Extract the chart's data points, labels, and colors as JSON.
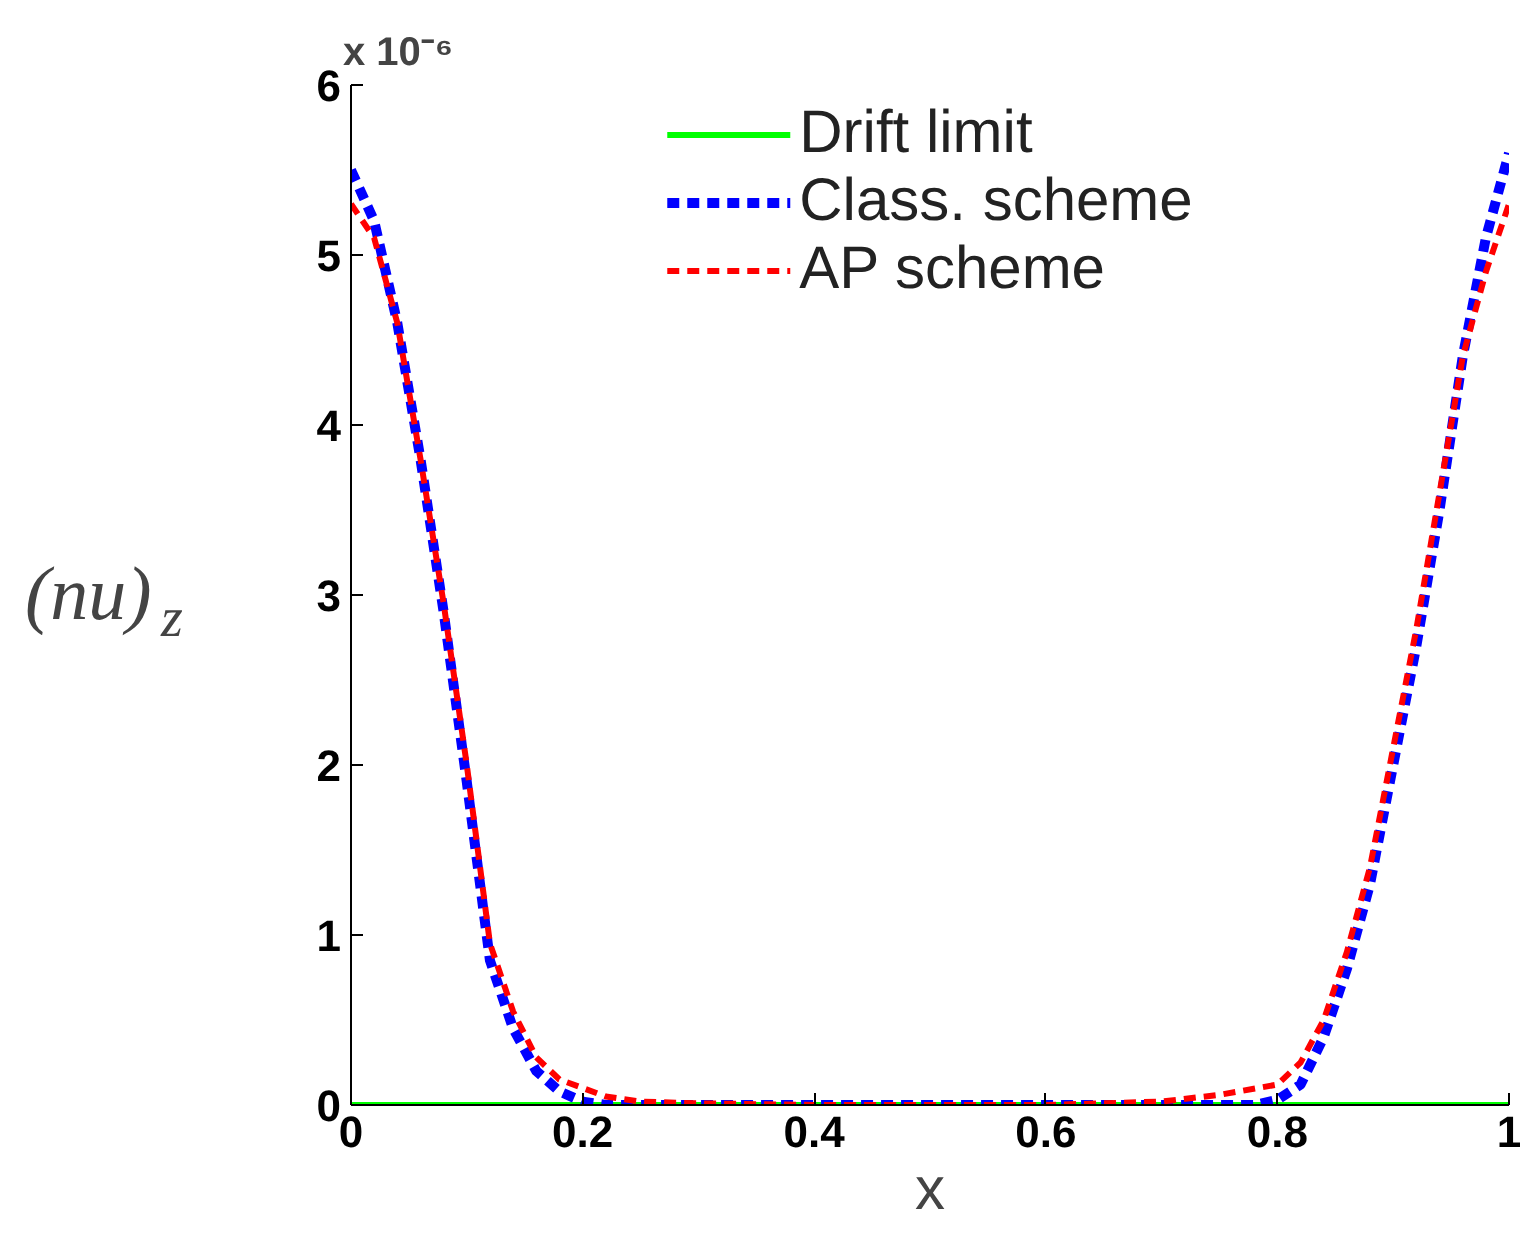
{
  "chart_data": {
    "type": "line",
    "xlabel": "x",
    "ylabel": "(nu)$_{z}$",
    "annotations": [
      "x 10⁻⁶"
    ],
    "xlim": [
      0,
      1
    ],
    "xticks": [
      0,
      0.2,
      0.4,
      0.6,
      0.8,
      1
    ],
    "ylim": [
      0,
      6
    ],
    "yticks": [
      0,
      1,
      2,
      3,
      4,
      5,
      6
    ],
    "grid": false,
    "legend": "top",
    "marker": "none",
    "series": [
      {
        "name": "Drift limit",
        "color": "#00ff00",
        "line_style": "solid",
        "x": [
          0,
          1
        ],
        "values": [
          0,
          0
        ]
      },
      {
        "name": "Class. scheme",
        "color": "#0000ff",
        "line_style": "dashed",
        "x": [
          0,
          0.02,
          0.04,
          0.06,
          0.08,
          0.1,
          0.12,
          0.14,
          0.16,
          0.18,
          0.2,
          0.22,
          0.3,
          0.4,
          0.5,
          0.6,
          0.7,
          0.78,
          0.8,
          0.82,
          0.84,
          0.86,
          0.88,
          0.9,
          0.92,
          0.94,
          0.96,
          0.98,
          1
        ],
        "values": [
          5.5,
          5.2,
          4.6,
          3.8,
          2.9,
          1.9,
          0.85,
          0.45,
          0.2,
          0.08,
          0.02,
          0,
          0,
          0,
          0,
          0,
          0,
          0,
          0.03,
          0.12,
          0.4,
          0.8,
          1.3,
          2.0,
          2.7,
          3.5,
          4.4,
          5.1,
          5.6
        ]
      },
      {
        "name": "AP scheme",
        "color": "#ff0000",
        "line_style": "dashed",
        "x": [
          0,
          0.02,
          0.04,
          0.06,
          0.08,
          0.1,
          0.12,
          0.14,
          0.16,
          0.18,
          0.2,
          0.22,
          0.25,
          0.3,
          0.4,
          0.5,
          0.6,
          0.7,
          0.75,
          0.8,
          0.82,
          0.84,
          0.86,
          0.88,
          0.9,
          0.92,
          0.94,
          0.96,
          0.98,
          1
        ],
        "values": [
          5.3,
          5.1,
          4.6,
          3.8,
          2.95,
          2.0,
          0.95,
          0.55,
          0.28,
          0.15,
          0.1,
          0.05,
          0.02,
          0.01,
          0,
          0,
          0,
          0.02,
          0.06,
          0.12,
          0.25,
          0.5,
          0.9,
          1.4,
          2.1,
          2.8,
          3.6,
          4.4,
          4.9,
          5.3
        ]
      }
    ]
  }
}
